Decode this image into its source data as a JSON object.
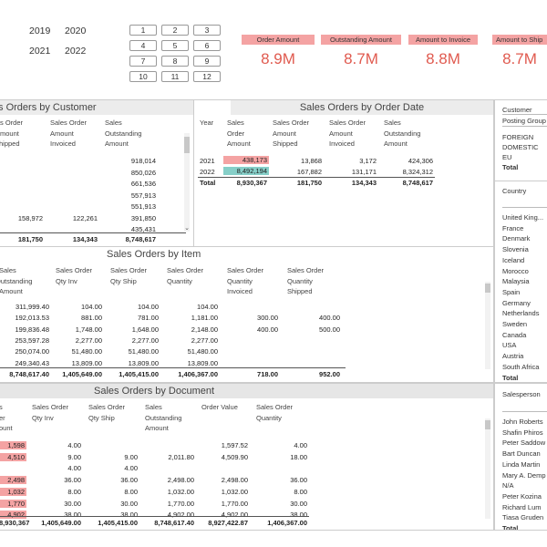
{
  "years": [
    "2019",
    "2020",
    "2021",
    "2022"
  ],
  "months": [
    "1",
    "2",
    "3",
    "4",
    "5",
    "6",
    "7",
    "8",
    "9",
    "10",
    "11",
    "12"
  ],
  "kpis": [
    {
      "title": "Order Amount",
      "value": "8.9M"
    },
    {
      "title": "Outstanding Amount",
      "value": "8.7M"
    },
    {
      "title": "Amount to Invoice",
      "value": "8.8M"
    },
    {
      "title": "Amount to Ship",
      "value": "8.7M"
    }
  ],
  "customer": {
    "title": "Sales Orders by Customer",
    "headers": [
      "Order\nAmount\nShipped",
      "Sales Order\nAmount\nInvoiced",
      "Sales\nOutstanding\nAmount"
    ],
    "header_prefix": "Sales Order",
    "rows": [
      [
        "",
        "",
        "918,014"
      ],
      [
        "",
        "",
        "850,026"
      ],
      [
        "",
        "",
        "661,536"
      ],
      [
        "",
        "",
        "557,913"
      ],
      [
        "",
        "",
        "551,913"
      ],
      [
        "158,972",
        "122,261",
        "391,850"
      ],
      [
        "",
        "",
        "435,431"
      ]
    ],
    "total": [
      "181,750",
      "134,343",
      "8,748,617"
    ]
  },
  "orderdate": {
    "title": "Sales Orders by Order Date",
    "headers": [
      "Year",
      "Sales\nOrder\nAmount",
      "Sales Order\nAmount\nShipped",
      "Sales Order\nAmount\nInvoiced",
      "Sales\nOutstanding\nAmount"
    ],
    "rows": [
      [
        "2021",
        "438,173",
        "13,868",
        "3,172",
        "424,306"
      ],
      [
        "2022",
        "8,492,194",
        "167,882",
        "131,171",
        "8,324,312"
      ]
    ],
    "total": [
      "Total",
      "8,930,367",
      "181,750",
      "134,343",
      "8,748,617"
    ]
  },
  "item": {
    "title": "Sales Orders by Item",
    "headers": [
      "Sales\nOutstanding\nAmount",
      "Sales Order\nQty Inv",
      "Sales Order\nQty Ship",
      "Sales Order\nQuantity",
      "Sales Order\nQuantity\nInvoiced",
      "Sales Order\nQuantity\nShipped"
    ],
    "rows": [
      [
        "311,999.40",
        "104.00",
        "104.00",
        "104.00",
        "",
        ""
      ],
      [
        "192,013.53",
        "881.00",
        "781.00",
        "1,181.00",
        "300.00",
        "400.00"
      ],
      [
        "199,836.48",
        "1,748.00",
        "1,648.00",
        "2,148.00",
        "400.00",
        "500.00"
      ],
      [
        "253,597.28",
        "2,277.00",
        "2,277.00",
        "2,277.00",
        "",
        ""
      ],
      [
        "250,074.00",
        "51,480.00",
        "51,480.00",
        "51,480.00",
        "",
        ""
      ],
      [
        "249,340.43",
        "13,809.00",
        "13,809.00",
        "13,809.00",
        "",
        ""
      ]
    ],
    "total": [
      "8,748,617.40",
      "1,405,649.00",
      "1,405,415.00",
      "1,406,367.00",
      "718.00",
      "952.00"
    ]
  },
  "document": {
    "title": "Sales Orders by Document",
    "headers": [
      "Sales\nOrder\nAmount",
      "Sales Order\nQty Inv",
      "Sales Order\nQty Ship",
      "Sales\nOutstanding\nAmount",
      "Order Value",
      "Sales Order\nQuantity"
    ],
    "rows": [
      [
        "1,598",
        "4.00",
        "",
        "",
        "1,597.52",
        "4.00"
      ],
      [
        "4,510",
        "9.00",
        "9.00",
        "2,011.80",
        "4,509.90",
        "18.00"
      ],
      [
        "",
        "4.00",
        "4.00",
        "",
        "",
        ""
      ],
      [
        "2,498",
        "36.00",
        "36.00",
        "2,498.00",
        "2,498.00",
        "36.00"
      ],
      [
        "1,032",
        "8.00",
        "8.00",
        "1,032.00",
        "1,032.00",
        "8.00"
      ],
      [
        "1,770",
        "30.00",
        "30.00",
        "1,770.00",
        "1,770.00",
        "30.00"
      ],
      [
        "4,902",
        "38.00",
        "38.00",
        "4,902.00",
        "4,902.00",
        "38.00"
      ]
    ],
    "total": [
      "8,930,367",
      "1,405,649.00",
      "1,405,415.00",
      "8,748,617.40",
      "8,927,422.87",
      "1,406,367.00"
    ]
  },
  "slicers": {
    "customer_label": "Customer",
    "posting_label": "Posting Group",
    "posting_items": [
      "FOREIGN",
      "DOMESTIC",
      "EU",
      "Total"
    ],
    "country_label": "Country",
    "country_items": [
      "United King...",
      "France",
      "Denmark",
      "Slovenia",
      "Iceland",
      "Morocco",
      "Malaysia",
      "Spain",
      "Germany",
      "Netherlands",
      "Sweden",
      "Canada",
      "USA",
      "Austria",
      "South Africa",
      "Total"
    ],
    "salesperson_label": "Salesperson",
    "salesperson_items": [
      "John Roberts",
      "Shafin Phiros",
      "Peter Saddow",
      "Bart Duncan",
      "Linda Martin",
      "Mary A. Demp",
      "N/A",
      "Peter Kozina",
      "Richard Lum",
      "Tiasa Gruden",
      "Total"
    ]
  }
}
